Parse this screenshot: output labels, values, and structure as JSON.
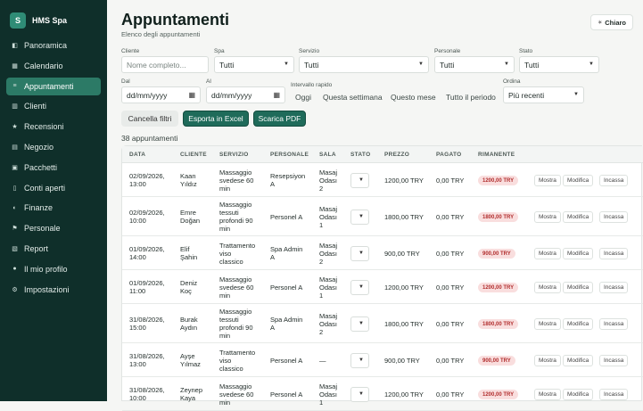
{
  "brand": {
    "logo_letter": "S",
    "name": "HMS Spa"
  },
  "sidebar": {
    "items": [
      {
        "icon": "panorama-icon",
        "glyph": "◧",
        "label": "Panoramica"
      },
      {
        "icon": "calendar-icon",
        "glyph": "▦",
        "label": "Calendario"
      },
      {
        "icon": "list-icon",
        "glyph": "≡",
        "label": "Appuntamenti",
        "active": true
      },
      {
        "icon": "clients-icon",
        "glyph": "▥",
        "label": "Clienti"
      },
      {
        "icon": "star-icon",
        "glyph": "★",
        "label": "Recensioni"
      },
      {
        "icon": "shop-icon",
        "glyph": "▤",
        "label": "Negozio"
      },
      {
        "icon": "package-icon",
        "glyph": "▣",
        "label": "Pacchetti"
      },
      {
        "icon": "document-icon",
        "glyph": "▯",
        "label": "Conti aperti"
      },
      {
        "icon": "money-icon",
        "glyph": "◐",
        "label": "Finanze"
      },
      {
        "icon": "flag-icon",
        "glyph": "⚑",
        "label": "Personale"
      },
      {
        "icon": "chart-icon",
        "glyph": "▧",
        "label": "Report"
      },
      {
        "icon": "user-icon",
        "glyph": "●",
        "label": "Il mio profilo"
      },
      {
        "icon": "gear-icon",
        "glyph": "⚙",
        "label": "Impostazioni"
      }
    ]
  },
  "header": {
    "title": "Appuntamenti",
    "subtitle": "Elenco degli appuntamenti",
    "theme_label": "Chiaro"
  },
  "filters": {
    "cliente_label": "Cliente",
    "cliente_placeholder": "Nome completo...",
    "spa_label": "Spa",
    "spa_value": "Tutti",
    "servizio_label": "Servizio",
    "servizio_value": "Tutti",
    "personale_label": "Personale",
    "personale_value": "Tutti",
    "stato_label": "Stato",
    "stato_value": "Tutti",
    "dal_label": "Dal",
    "dal_value": "dd/mm/yyyy",
    "al_label": "Al",
    "al_value": "dd/mm/yyyy",
    "quick_label": "Intervallo rapido",
    "quick": [
      "Oggi",
      "Questa settimana",
      "Questo mese",
      "Tutto il periodo"
    ],
    "ordina_label": "Ordina",
    "ordina_value": "Più recenti"
  },
  "actions": {
    "cancel": "Cancella filtri",
    "excel": "Esporta in Excel",
    "pdf": "Scarica PDF"
  },
  "count_text": "38 appuntamenti",
  "table": {
    "headers": [
      "DATA",
      "CLIENTE",
      "SERVIZIO",
      "PERSONALE",
      "SALA",
      "STATO",
      "PREZZO",
      "PAGATO",
      "RIMANENTE"
    ],
    "row_actions": [
      "Mostra",
      "Modifica",
      "Incassa"
    ],
    "rows": [
      {
        "data": [
          "02/09/2026,",
          "13:00"
        ],
        "cliente": [
          "Kaan",
          "Yıldız"
        ],
        "servizio": [
          "Massaggio",
          "svedese 60",
          "min"
        ],
        "personale": [
          "Resepsiyon",
          "A"
        ],
        "sala": [
          "Masaj",
          "Odası",
          "2"
        ],
        "prezzo": "1200,00 TRY",
        "pagato": "0,00 TRY",
        "rimanente": "1200,00 TRY"
      },
      {
        "data": [
          "02/09/2026,",
          "10:00"
        ],
        "cliente": [
          "Emre",
          "Doğan"
        ],
        "servizio": [
          "Massaggio",
          "tessuti",
          "profondi 90",
          "min"
        ],
        "personale": [
          "Personel A"
        ],
        "sala": [
          "Masaj",
          "Odası",
          "1"
        ],
        "prezzo": "1800,00 TRY",
        "pagato": "0,00 TRY",
        "rimanente": "1800,00 TRY"
      },
      {
        "data": [
          "01/09/2026,",
          "14:00"
        ],
        "cliente": [
          "Elif",
          "Şahin"
        ],
        "servizio": [
          "Trattamento",
          "viso",
          "classico"
        ],
        "personale": [
          "Spa Admin",
          "A"
        ],
        "sala": [
          "Masaj",
          "Odası",
          "2"
        ],
        "prezzo": "900,00 TRY",
        "pagato": "0,00 TRY",
        "rimanente": "900,00 TRY"
      },
      {
        "data": [
          "01/09/2026,",
          "11:00"
        ],
        "cliente": [
          "Deniz",
          "Koç"
        ],
        "servizio": [
          "Massaggio",
          "svedese 60",
          "min"
        ],
        "personale": [
          "Personel A"
        ],
        "sala": [
          "Masaj",
          "Odası",
          "1"
        ],
        "prezzo": "1200,00 TRY",
        "pagato": "0,00 TRY",
        "rimanente": "1200,00 TRY"
      },
      {
        "data": [
          "31/08/2026,",
          "15:00"
        ],
        "cliente": [
          "Burak",
          "Aydın"
        ],
        "servizio": [
          "Massaggio",
          "tessuti",
          "profondi 90",
          "min"
        ],
        "personale": [
          "Spa Admin",
          "A"
        ],
        "sala": [
          "Masaj",
          "Odası",
          "2"
        ],
        "prezzo": "1800,00 TRY",
        "pagato": "0,00 TRY",
        "rimanente": "1800,00 TRY"
      },
      {
        "data": [
          "31/08/2026,",
          "13:00"
        ],
        "cliente": [
          "Ayşe",
          "Yılmaz"
        ],
        "servizio": [
          "Trattamento",
          "viso",
          "classico"
        ],
        "personale": [
          "Personel A"
        ],
        "sala": [
          "—"
        ],
        "prezzo": "900,00 TRY",
        "pagato": "0,00 TRY",
        "rimanente": "900,00 TRY"
      },
      {
        "data": [
          "31/08/2026,",
          "10:00"
        ],
        "cliente": [
          "Zeynep",
          "Kaya"
        ],
        "servizio": [
          "Massaggio",
          "svedese 60",
          "min"
        ],
        "personale": [
          "Personel A"
        ],
        "sala": [
          "Masaj",
          "Odası",
          "1"
        ],
        "prezzo": "1200,00 TRY",
        "pagato": "0,00 TRY",
        "rimanente": "1200,00 TRY"
      }
    ]
  },
  "colors": {
    "sidebar_bg": "#0f2f2a",
    "accent": "#2c7a66",
    "primary_button": "#1f6b5a",
    "badge_bg": "#f9dede",
    "badge_text": "#b22f2f"
  }
}
